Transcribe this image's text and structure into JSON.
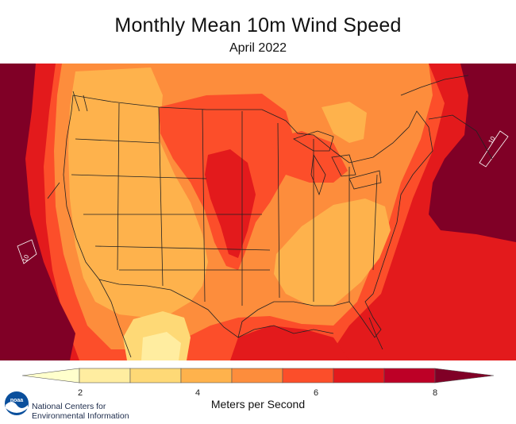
{
  "title": "Monthly Mean 10m Wind Speed",
  "subtitle": "April 2022",
  "legend": {
    "units": "Meters per Second",
    "ticks": [
      "2",
      "4",
      "6",
      "8"
    ],
    "colors": [
      "#FFFFCC",
      "#FFEDA0",
      "#FED976",
      "#FEB24C",
      "#FD8D3C",
      "#FC4E2A",
      "#E31A1C",
      "#BD0026",
      "#800026"
    ]
  },
  "map": {
    "contour_labels": [
      "10",
      "10"
    ]
  },
  "credit": {
    "logo_text": "noaa",
    "line1": "National Centers for",
    "line2": "Environmental Information"
  }
}
